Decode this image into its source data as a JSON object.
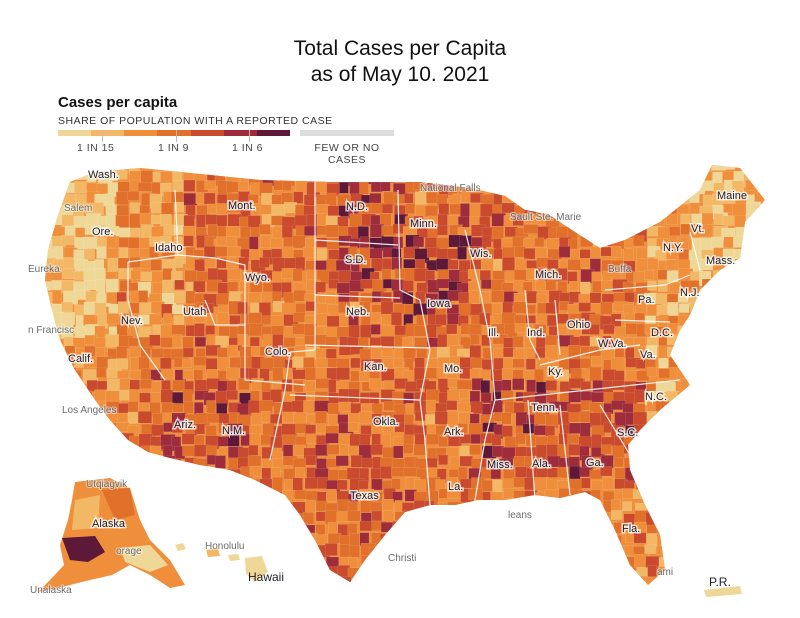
{
  "title_line1": "Total Cases per Capita",
  "title_line2": "as of May 10. 2021",
  "legend": {
    "title": "Cases per capita",
    "subtitle": "SHARE OF POPULATION WITH A REPORTED CASE",
    "tick1": "1 IN 15",
    "tick2": "1 IN 9",
    "tick3": "1 IN 6",
    "few_line1": "FEW OR NO",
    "few_line2": "CASES",
    "colors": [
      "#efd897",
      "#f2b866",
      "#ef8f3c",
      "#e0702a",
      "#c94a2c",
      "#9e2c3a",
      "#5e1838"
    ],
    "few_color": "#dcdcdc"
  },
  "state_labels": {
    "wash": "Wash.",
    "ore": "Ore.",
    "calif": "Calif.",
    "idaho": "Idaho",
    "nev": "Nev.",
    "mont": "Mont.",
    "wyo": "Wyo.",
    "utah": "Utah",
    "ariz": "Ariz.",
    "colo": "Colo.",
    "nm": "N.M.",
    "nd": "N.D.",
    "sd": "S.D.",
    "neb": "Neb.",
    "kan": "Kan.",
    "okla": "Okla.",
    "texas": "Texas",
    "minn": "Minn.",
    "iowa": "Iowa",
    "mo": "Mo.",
    "ark": "Ark.",
    "la": "La.",
    "wis": "Wis.",
    "ill": "Ill.",
    "mich": "Mich.",
    "ind": "Ind.",
    "ohio": "Ohio",
    "ky": "Ky.",
    "tenn": "Tenn.",
    "miss": "Miss.",
    "ala": "Ala.",
    "ga": "Ga.",
    "fla": "Fla.",
    "sc": "S.C.",
    "nc": "N.C.",
    "va": "Va.",
    "wva": "W.Va.",
    "dc": "D.C.",
    "pa": "Pa.",
    "ny": "N.Y.",
    "nj": "N.J.",
    "vt": "Vt.",
    "maine": "Maine",
    "mass": "Mass.",
    "alaska": "Alaska",
    "hawaii": "Hawaii",
    "pr": "P.R."
  },
  "city_labels": {
    "salem": "Salem",
    "eureka": "Eureka",
    "sanfran": "n Francisc",
    "losangeles": "Los Angeles",
    "intlfalls": "National Falls",
    "saultstemarie": "Sault Ste. Marie",
    "buffalo": "Buffa",
    "utqiagvik": "Utqiagvik",
    "honolulu": "Honolulu",
    "anchorage": "orage",
    "unalaska": "Unalaska",
    "corpuschristi": "Christi",
    "miami": "ami",
    "orleans": "leans"
  }
}
